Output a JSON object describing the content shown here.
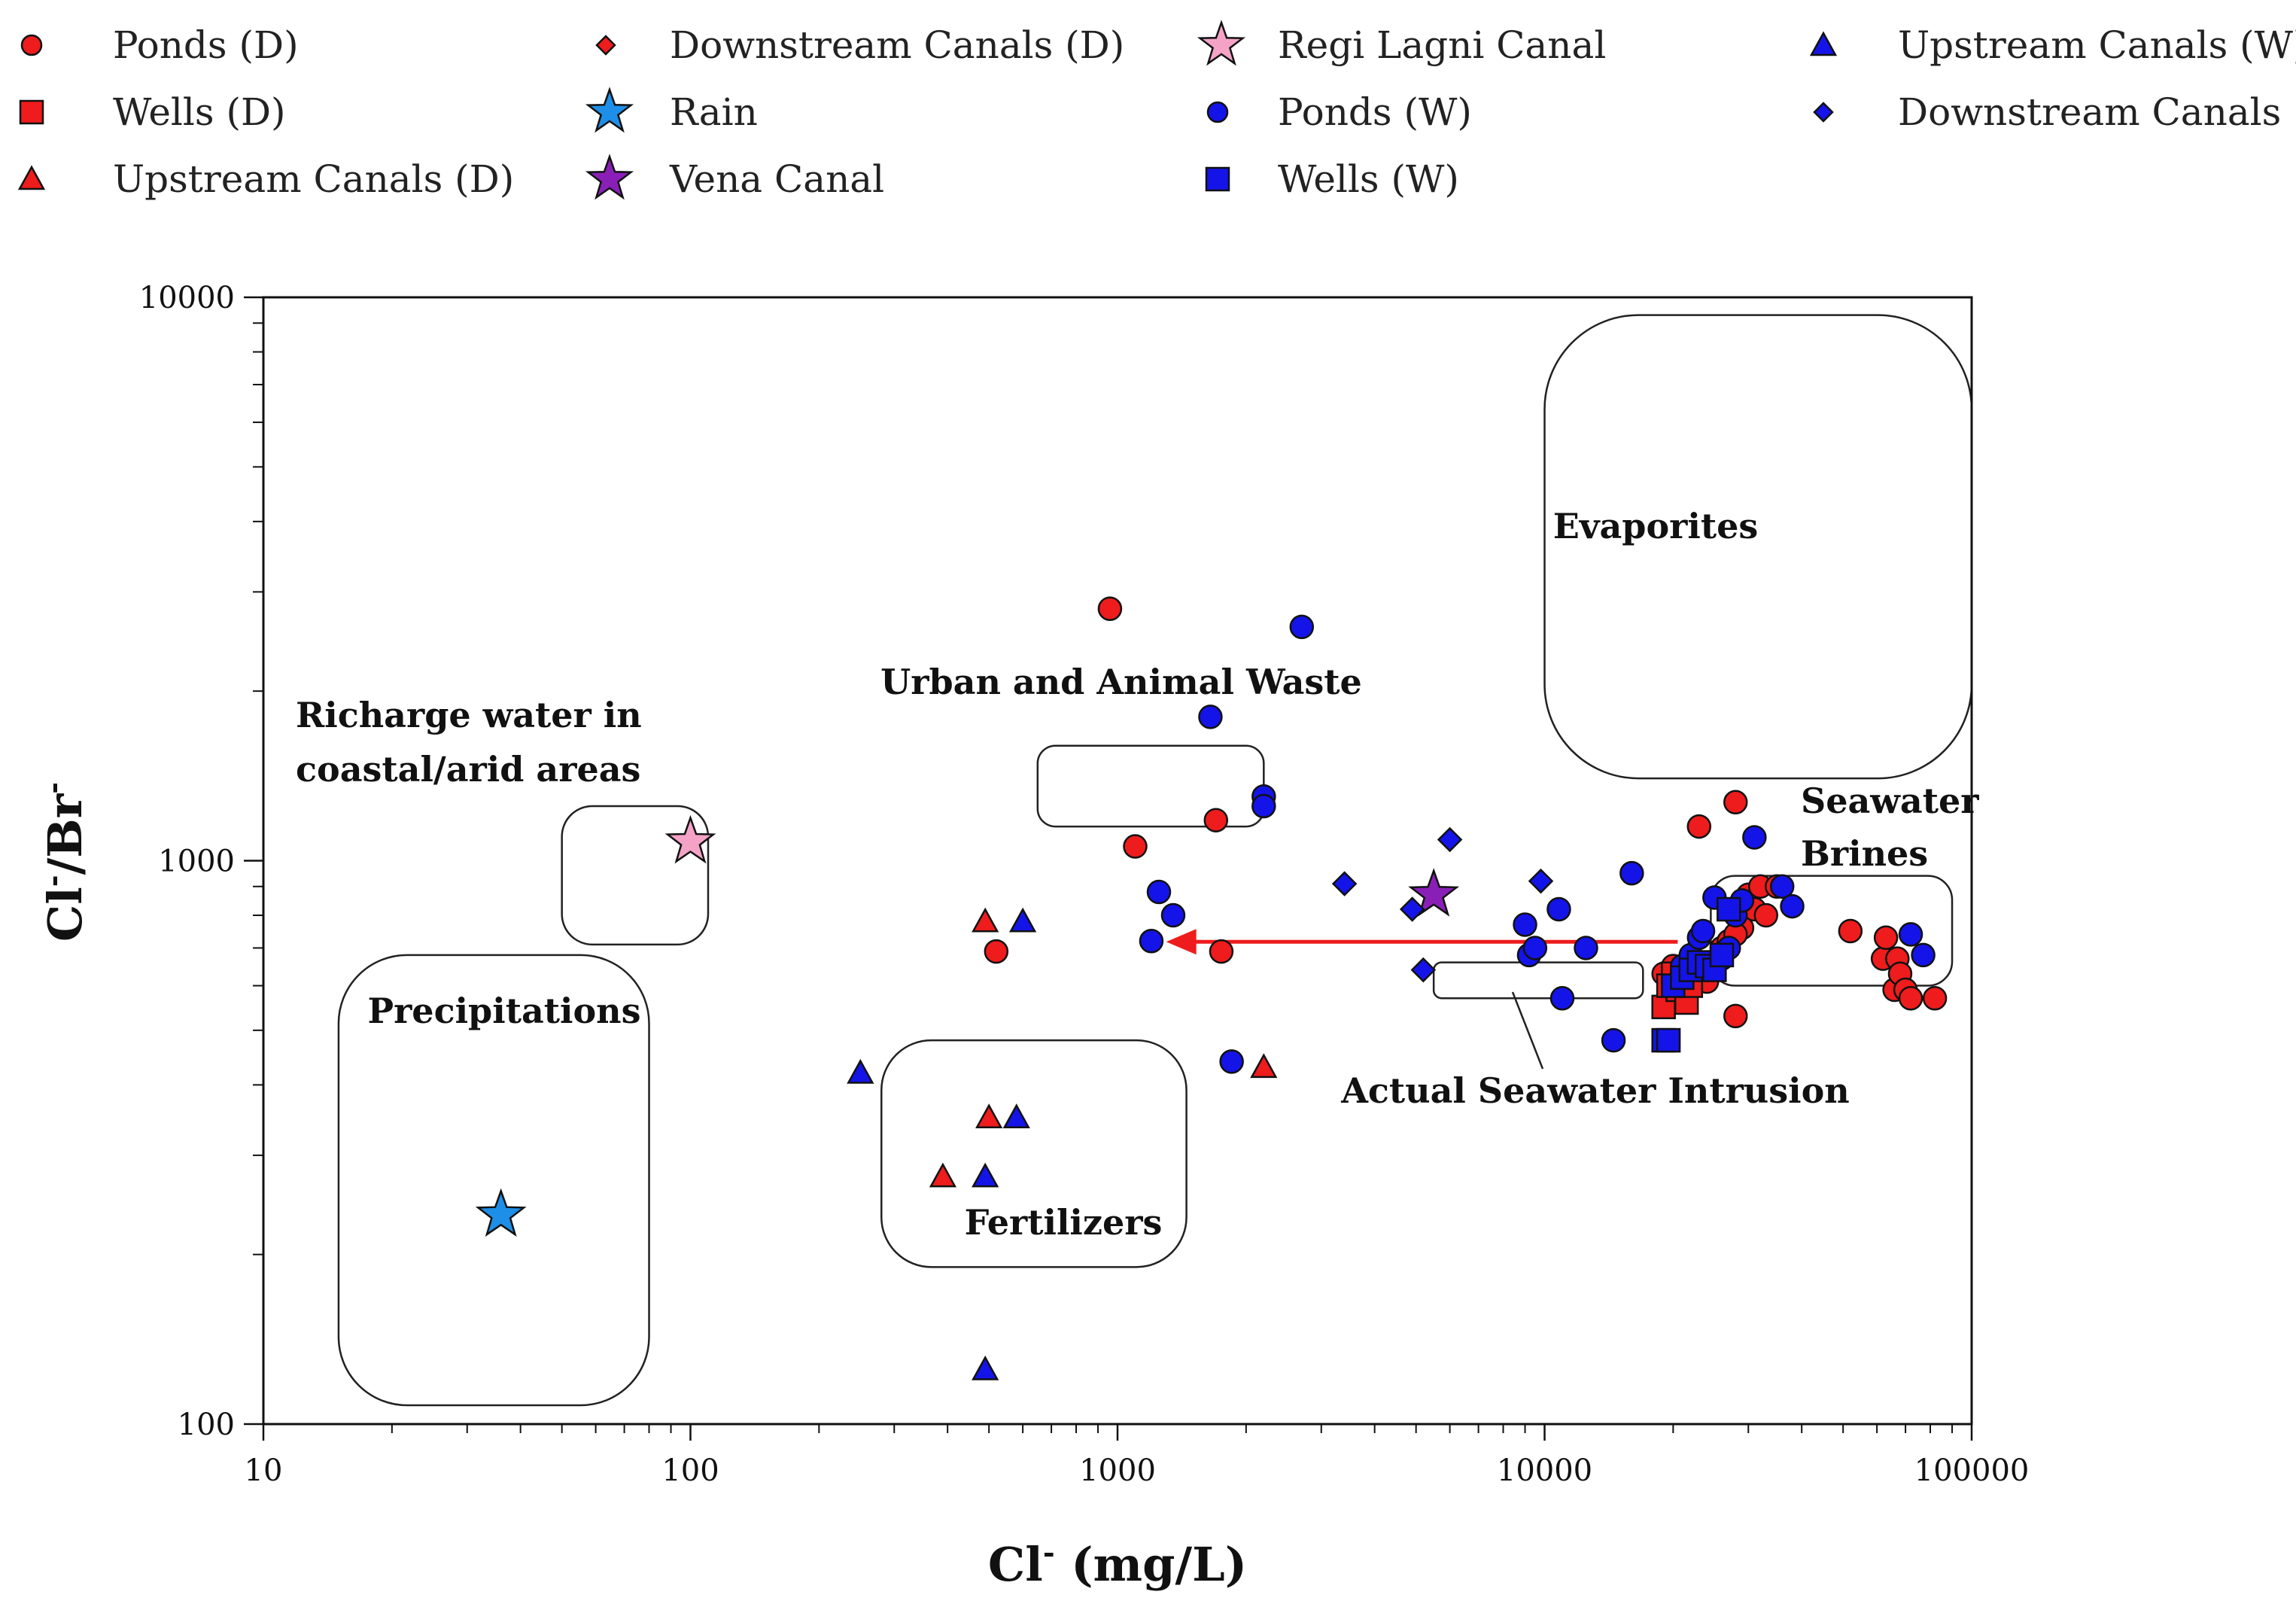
{
  "chart_data": {
    "type": "scatter",
    "title": "",
    "xlabel": "Cl",
    "xlabel_sup": "-",
    "xlabel_unit": " (mg/L)",
    "ylabel": "Cl",
    "ylabel_sup1": "-",
    "ylabel_mid": "/Br",
    "ylabel_sup2": "-",
    "xscale": "log",
    "yscale": "log",
    "xlim": [
      10,
      100000
    ],
    "ylim": [
      100,
      10000
    ],
    "x_ticks": [
      10,
      100,
      1000,
      10000,
      100000
    ],
    "x_tick_labels": [
      "10",
      "100",
      "1000",
      "10000",
      "100000"
    ],
    "y_ticks": [
      100,
      1000,
      10000
    ],
    "y_tick_labels": [
      "100",
      "1000",
      "10000"
    ],
    "legend_position": "top",
    "series": [
      {
        "name": "Ponds (D)",
        "marker": "circle",
        "color": "#ee1c1c",
        "points": [
          [
            960,
            2800
          ],
          [
            1100,
            1060
          ],
          [
            520,
            690
          ],
          [
            1700,
            1180
          ],
          [
            1750,
            690
          ],
          [
            23000,
            1150
          ],
          [
            28000,
            1270
          ],
          [
            28000,
            530
          ],
          [
            29000,
            760
          ],
          [
            30000,
            870
          ],
          [
            31000,
            820
          ],
          [
            32000,
            900
          ],
          [
            33000,
            800
          ],
          [
            35000,
            900
          ],
          [
            52000,
            750
          ],
          [
            62000,
            670
          ],
          [
            63000,
            730
          ],
          [
            66000,
            590
          ],
          [
            67000,
            670
          ],
          [
            68000,
            630
          ],
          [
            70000,
            590
          ],
          [
            72000,
            570
          ],
          [
            82000,
            570
          ],
          [
            19000,
            630
          ],
          [
            20000,
            650
          ],
          [
            21000,
            600
          ],
          [
            22000,
            660
          ],
          [
            23000,
            630
          ],
          [
            24000,
            610
          ],
          [
            25000,
            650
          ],
          [
            26000,
            700
          ],
          [
            27000,
            720
          ],
          [
            28000,
            740
          ]
        ]
      },
      {
        "name": "Wells (D)",
        "marker": "square",
        "color": "#ee1c1c",
        "points": [
          [
            19000,
            550
          ],
          [
            19500,
            600
          ],
          [
            20000,
            630
          ],
          [
            20500,
            590
          ],
          [
            21000,
            620
          ],
          [
            21500,
            560
          ],
          [
            22000,
            600
          ]
        ]
      },
      {
        "name": "Upstream Canals (D)",
        "marker": "triangle",
        "color": "#ee1c1c",
        "points": [
          [
            490,
            780
          ],
          [
            500,
            350
          ],
          [
            390,
            275
          ],
          [
            2200,
            430
          ]
        ]
      },
      {
        "name": "Downstream Canals (D)",
        "marker": "diamond",
        "color": "#ee1c1c",
        "points": []
      },
      {
        "name": "Rain",
        "marker": "star",
        "color": "#1e8fe8",
        "points": [
          [
            36,
            235
          ]
        ]
      },
      {
        "name": "Vena Canal",
        "marker": "star",
        "color": "#8a1fb8",
        "points": [
          [
            5500,
            870
          ]
        ]
      },
      {
        "name": "Regi Lagni Canal",
        "marker": "star",
        "color": "#f4a3c6",
        "points": [
          [
            100,
            1080
          ]
        ]
      },
      {
        "name": "Ponds (W)",
        "marker": "circle",
        "color": "#1414e8",
        "points": [
          [
            2700,
            2600
          ],
          [
            1650,
            1800
          ],
          [
            2200,
            1300
          ],
          [
            2200,
            1250
          ],
          [
            1250,
            880
          ],
          [
            1350,
            800
          ],
          [
            1200,
            720
          ],
          [
            1850,
            440
          ],
          [
            9000,
            770
          ],
          [
            9200,
            680
          ],
          [
            9500,
            700
          ],
          [
            10800,
            820
          ],
          [
            11000,
            570
          ],
          [
            12500,
            700
          ],
          [
            14500,
            480
          ],
          [
            16000,
            950
          ],
          [
            21000,
            650
          ],
          [
            22000,
            680
          ],
          [
            23000,
            730
          ],
          [
            23500,
            750
          ],
          [
            24000,
            640
          ],
          [
            25000,
            860
          ],
          [
            26000,
            670
          ],
          [
            27000,
            700
          ],
          [
            28000,
            800
          ],
          [
            29000,
            850
          ],
          [
            31000,
            1100
          ],
          [
            36000,
            900
          ],
          [
            38000,
            830
          ],
          [
            72000,
            740
          ],
          [
            77000,
            680
          ]
        ]
      },
      {
        "name": "Wells (W)",
        "marker": "square",
        "color": "#1414e8",
        "points": [
          [
            19000,
            480
          ],
          [
            19500,
            480
          ],
          [
            20000,
            600
          ],
          [
            21000,
            620
          ],
          [
            22000,
            640
          ],
          [
            23000,
            660
          ],
          [
            24000,
            650
          ],
          [
            25000,
            640
          ],
          [
            26000,
            680
          ],
          [
            27000,
            820
          ]
        ]
      },
      {
        "name": "Upstream Canals (W)",
        "marker": "triangle",
        "color": "#1414e8",
        "points": [
          [
            600,
            780
          ],
          [
            250,
            420
          ],
          [
            580,
            350
          ],
          [
            490,
            275
          ],
          [
            490,
            125
          ]
        ]
      },
      {
        "name": "Downstream Canals (W)",
        "marker": "diamond",
        "color": "#1414e8",
        "points": [
          [
            3400,
            910
          ],
          [
            6000,
            1090
          ],
          [
            9800,
            920
          ],
          [
            5200,
            640
          ],
          [
            4900,
            820
          ]
        ]
      }
    ],
    "regions": [
      {
        "label_lines": [
          "Evaporites"
        ],
        "x_range": [
          10000,
          100000
        ],
        "y_range": [
          1400,
          9300
        ]
      },
      {
        "label_lines": [
          "Urban and Animal Waste"
        ],
        "x_range": [
          650,
          2200
        ],
        "y_range": [
          1150,
          1600
        ]
      },
      {
        "label_lines": [
          "Richarge water in",
          "coastal/arid areas"
        ],
        "x_range": [
          50,
          110
        ],
        "y_range": [
          710,
          1250
        ]
      },
      {
        "label_lines": [
          "Precipitations"
        ],
        "x_range": [
          15,
          80
        ],
        "y_range": [
          108,
          680
        ]
      },
      {
        "label_lines": [
          "Fertilizers"
        ],
        "x_range": [
          280,
          1450
        ],
        "y_range": [
          190,
          480
        ]
      },
      {
        "label_lines": [
          "Seawater",
          "Brines"
        ],
        "x_range": [
          24500,
          90000
        ],
        "y_range": [
          600,
          940
        ]
      },
      {
        "label_lines": [
          "Actual Seawater Intrusion"
        ],
        "x_range": [
          5500,
          17000
        ],
        "y_range": [
          570,
          660
        ]
      }
    ],
    "arrow": {
      "from": [
        20500,
        718
      ],
      "to": [
        1300,
        718
      ],
      "color": "#ee1c1c"
    }
  }
}
